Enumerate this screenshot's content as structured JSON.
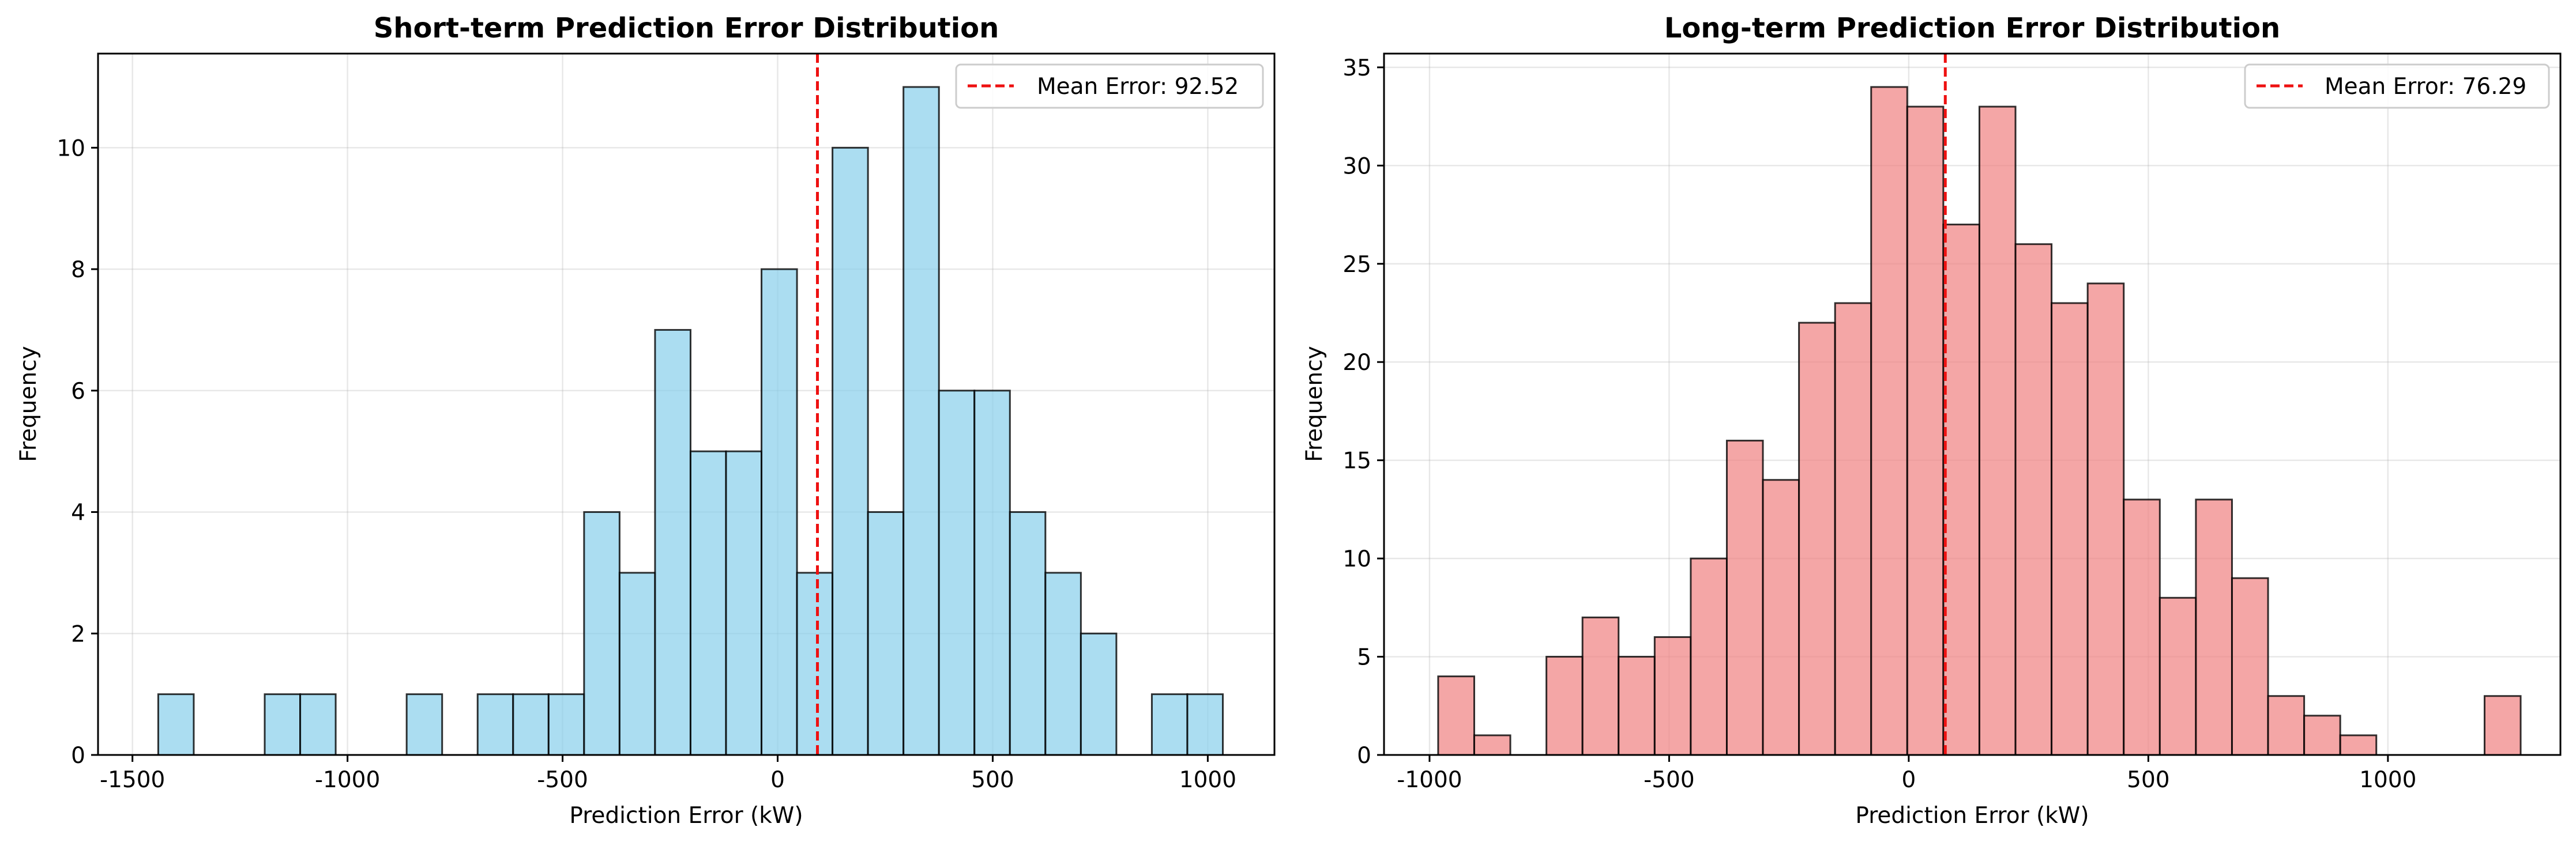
{
  "chart_data": [
    {
      "type": "bar",
      "title": "Short-term Prediction Error Distribution",
      "xlabel": "Prediction Error (kW)",
      "ylabel": "Frequency",
      "xlim": [
        -1580,
        1155
      ],
      "ylim": [
        0,
        11.55
      ],
      "xticks": [
        -1500,
        -1000,
        -500,
        0,
        500,
        1000
      ],
      "xtick_labels": [
        "-1500",
        "-1000",
        "-500",
        "0",
        "500",
        "1000"
      ],
      "yticks": [
        0,
        2,
        4,
        6,
        8,
        10
      ],
      "ytick_labels": [
        "0",
        "2",
        "4",
        "6",
        "8",
        "10"
      ],
      "bin_start": -1440,
      "bin_width": 82.5,
      "values": [
        1,
        0,
        0,
        1,
        1,
        0,
        0,
        1,
        0,
        1,
        1,
        1,
        4,
        3,
        7,
        5,
        5,
        8,
        3,
        10,
        4,
        11,
        6,
        6,
        4,
        3,
        2,
        0,
        1,
        1
      ],
      "bar_color": "#87CEEB",
      "mean_line": {
        "value": 92.52,
        "label": "Mean Error: 92.52",
        "color": "#ee1111"
      },
      "legend": "top-right",
      "grid": true
    },
    {
      "type": "bar",
      "title": "Long-term Prediction Error Distribution",
      "xlabel": "Prediction Error (kW)",
      "ylabel": "Frequency",
      "xlim": [
        -1095,
        1360
      ],
      "ylim": [
        0,
        35.7
      ],
      "xticks": [
        -1000,
        -500,
        0,
        500,
        1000
      ],
      "xtick_labels": [
        "-1000",
        "-500",
        "0",
        "500",
        "1000"
      ],
      "yticks": [
        0,
        5,
        10,
        15,
        20,
        25,
        30,
        35
      ],
      "ytick_labels": [
        "0",
        "5",
        "10",
        "15",
        "20",
        "25",
        "30",
        "35"
      ],
      "bin_start": -982,
      "bin_width": 75.3,
      "values": [
        4,
        1,
        0,
        5,
        7,
        5,
        6,
        10,
        16,
        14,
        22,
        23,
        34,
        33,
        27,
        33,
        26,
        23,
        24,
        13,
        8,
        13,
        9,
        3,
        2,
        1,
        0,
        0,
        0,
        3
      ],
      "bar_color": "#F08080",
      "mean_line": {
        "value": 76.29,
        "label": "Mean Error: 76.29",
        "color": "#ee1111"
      },
      "legend": "top-right",
      "grid": true
    }
  ]
}
